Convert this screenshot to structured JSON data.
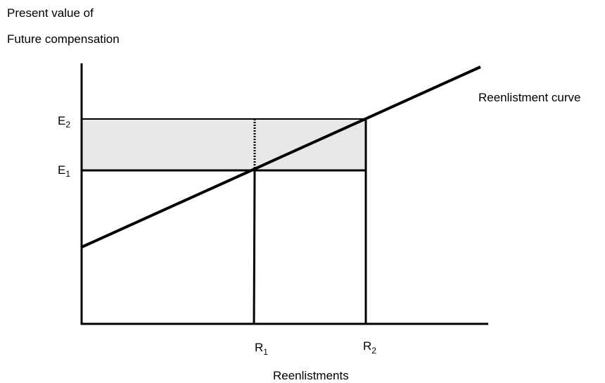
{
  "diagram": {
    "y_axis_label": [
      "Present value of",
      "Future compensation"
    ],
    "x_axis_label": "Reenlistments",
    "curve_label": "Reenlistment curve",
    "y_markers": [
      {
        "base": "E",
        "sub": "2"
      },
      {
        "base": "E",
        "sub": "1"
      }
    ],
    "x_markers": [
      {
        "base": "R",
        "sub": "1"
      },
      {
        "base": "R",
        "sub": "2"
      }
    ]
  }
}
